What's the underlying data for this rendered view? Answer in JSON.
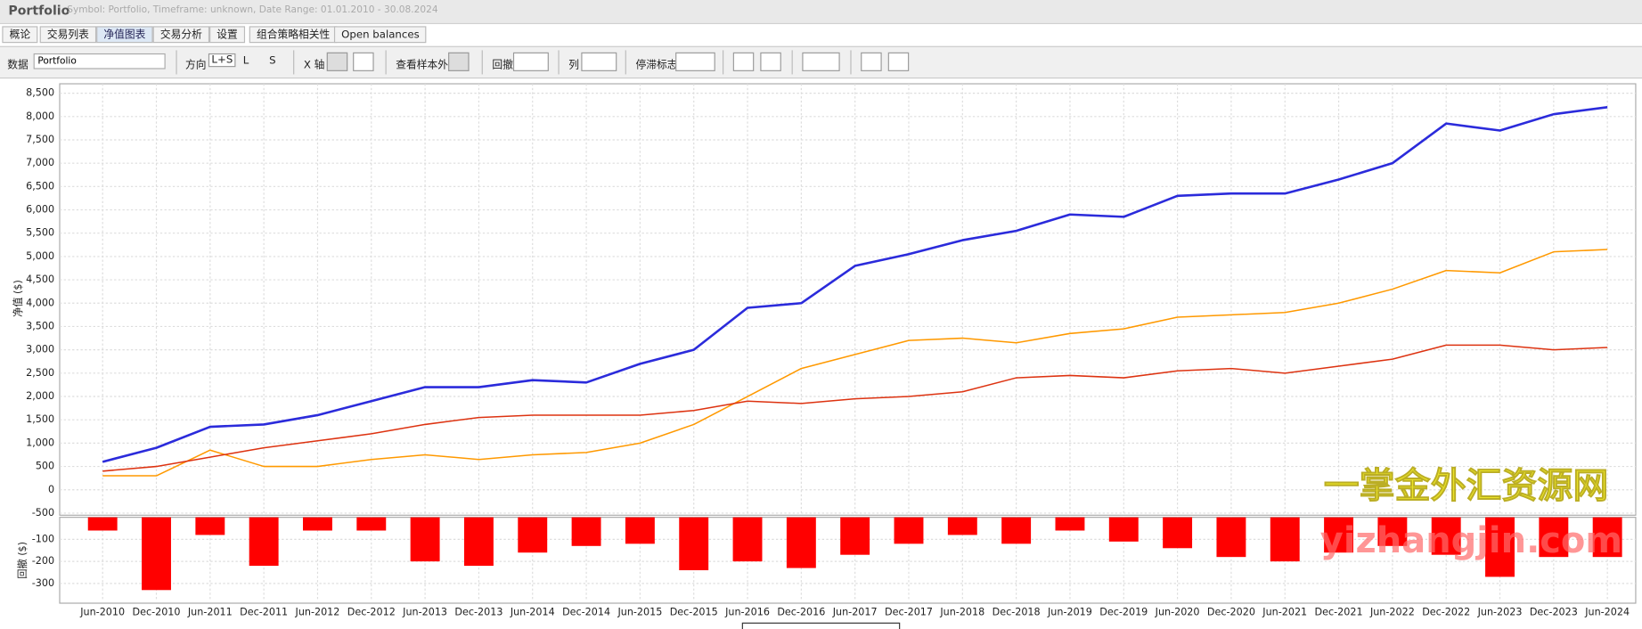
{
  "header": {
    "title": "Portfolio",
    "subtitle": "Symbol: Portfolio, Timeframe: unknown, Date Range: 01.01.2010 - 30.08.2024"
  },
  "tabs": [
    "概论",
    "交易列表",
    "净值图表",
    "交易分析",
    "设置",
    "组合策略相关性",
    "Open balances"
  ],
  "toolbar": {
    "data_label": "数据",
    "data_value": "Portfolio",
    "direction": "方向",
    "ls": "L+S",
    "l": "L",
    "s": "S",
    "x_axis": "X 轴",
    "out_of_sample": "查看样本外",
    "drawdown": "回撤",
    "columns": "列",
    "stagnation": "停滞标志"
  },
  "watermark": [
    "一掌金外汇资源网",
    "yizhangjin.com"
  ],
  "chart_data": [
    {
      "type": "line",
      "ylabel": "净值 ($)",
      "grid": true,
      "categories": [
        "Jun-2010",
        "Dec-2010",
        "Jun-2011",
        "Dec-2011",
        "Jun-2012",
        "Dec-2012",
        "Jun-2013",
        "Dec-2013",
        "Jun-2014",
        "Dec-2014",
        "Jun-2015",
        "Dec-2015",
        "Jun-2016",
        "Dec-2016",
        "Jun-2017",
        "Dec-2017",
        "Jun-2018",
        "Dec-2018",
        "Jun-2019",
        "Dec-2019",
        "Jun-2020",
        "Dec-2020",
        "Jun-2021",
        "Dec-2021",
        "Jun-2022",
        "Dec-2022",
        "Jun-2023",
        "Dec-2023",
        "Jun-2024"
      ],
      "ylim": [
        -500,
        8500
      ],
      "yticks": [
        -500,
        0,
        500,
        {
          "value": 1000,
          "label": "1,000"
        },
        {
          "value": 1500,
          "label": "1,500"
        },
        {
          "value": 2000,
          "label": "2,000"
        },
        {
          "value": 2500,
          "label": "2,500"
        },
        {
          "value": 3000,
          "label": "3,000"
        },
        {
          "value": 3500,
          "label": "3,500"
        },
        {
          "value": 4000,
          "label": "4,000"
        },
        {
          "value": 4500,
          "label": "4,500"
        },
        {
          "value": 5000,
          "label": "5,000"
        },
        {
          "value": 5500,
          "label": "5,500"
        },
        {
          "value": 6000,
          "label": "6,000"
        },
        {
          "value": 6500,
          "label": "6,500"
        },
        {
          "value": 7000,
          "label": "7,000"
        },
        {
          "value": 7500,
          "label": "7,500"
        },
        {
          "value": 8000,
          "label": "8,000"
        },
        {
          "value": 8500,
          "label": "8,500"
        }
      ],
      "series": [
        {
          "color": "#2b2bdb",
          "width": 2.2,
          "values": [
            600,
            900,
            1350,
            1400,
            1600,
            1900,
            2200,
            2200,
            2350,
            2300,
            2700,
            3000,
            3900,
            4000,
            4800,
            5050,
            5350,
            5550,
            5900,
            5850,
            6300,
            6350,
            6350,
            6650,
            7000,
            7850,
            7700,
            8050,
            8200
          ]
        },
        {
          "color": "#ff9900",
          "width": 1.3,
          "values": [
            300,
            300,
            850,
            500,
            500,
            650,
            750,
            650,
            750,
            800,
            1000,
            1400,
            2000,
            2600,
            2900,
            3200,
            3250,
            3150,
            3350,
            3450,
            3700,
            3750,
            3800,
            4000,
            4300,
            4700,
            4650,
            5100,
            5150
          ]
        },
        {
          "color": "#dd3311",
          "width": 1.3,
          "values": [
            400,
            500,
            700,
            900,
            1050,
            1200,
            1400,
            1550,
            1600,
            1600,
            1600,
            1700,
            1900,
            1850,
            1950,
            2000,
            2100,
            2400,
            2450,
            2400,
            2550,
            2600,
            2500,
            2650,
            2800,
            3100,
            3100,
            3000,
            3050
          ]
        }
      ]
    },
    {
      "type": "bar",
      "ylabel": "回撤 ($)",
      "grid": true,
      "color": "#ff0000",
      "ylim": [
        -380,
        0
      ],
      "yticks": [
        -300,
        -200,
        -100
      ],
      "values": [
        -60,
        -330,
        -80,
        -220,
        -60,
        -60,
        -200,
        -220,
        -160,
        -130,
        -120,
        -240,
        -200,
        -230,
        -170,
        -120,
        -80,
        -120,
        -60,
        -110,
        -140,
        -180,
        -200,
        -160,
        -130,
        -170,
        -270,
        -180,
        -180
      ]
    }
  ]
}
